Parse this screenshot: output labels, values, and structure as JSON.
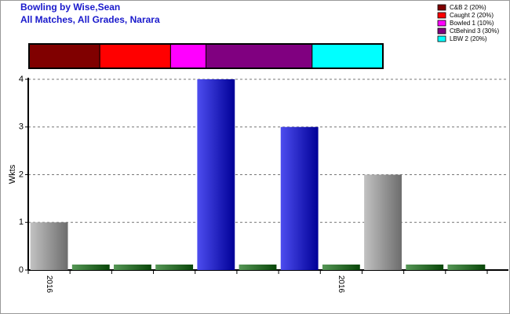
{
  "chart_data": {
    "type": "bar",
    "title": "Bowling by Wise,Sean",
    "subtitle": "All Matches, All Grades, Narara",
    "ylabel": "Wkts",
    "categories": [
      "2016",
      null,
      null,
      null,
      null,
      null,
      null,
      "2016",
      null,
      null,
      null
    ],
    "values": [
      1,
      0,
      0,
      0,
      4,
      0,
      3,
      0,
      2,
      0,
      0
    ],
    "colors": [
      "#a8a8a8",
      "#0d6b0d",
      "#0d6b0d",
      "#0d6b0d",
      "#0000e8",
      "#0d6b0d",
      "#0000e8",
      "#0d6b0d",
      "#a8a8a8",
      "#0d6b0d",
      "#0d6b0d"
    ],
    "ylim": [
      0,
      4
    ],
    "yticks": [
      0,
      1,
      2,
      3,
      4
    ],
    "grid": true,
    "dismissals": [
      {
        "label": "C&B 2 (20%)",
        "value": 2,
        "color": "#800000"
      },
      {
        "label": "Caught 2 (20%)",
        "value": 2,
        "color": "#ff0000"
      },
      {
        "label": "Bowled 1 (10%)",
        "value": 1,
        "color": "#ff00ff"
      },
      {
        "label": "CtBehind 3 (30%)",
        "value": 3,
        "color": "#800080"
      },
      {
        "label": "LBW 2 (20%)",
        "value": 2,
        "color": "#00ffff"
      }
    ]
  }
}
